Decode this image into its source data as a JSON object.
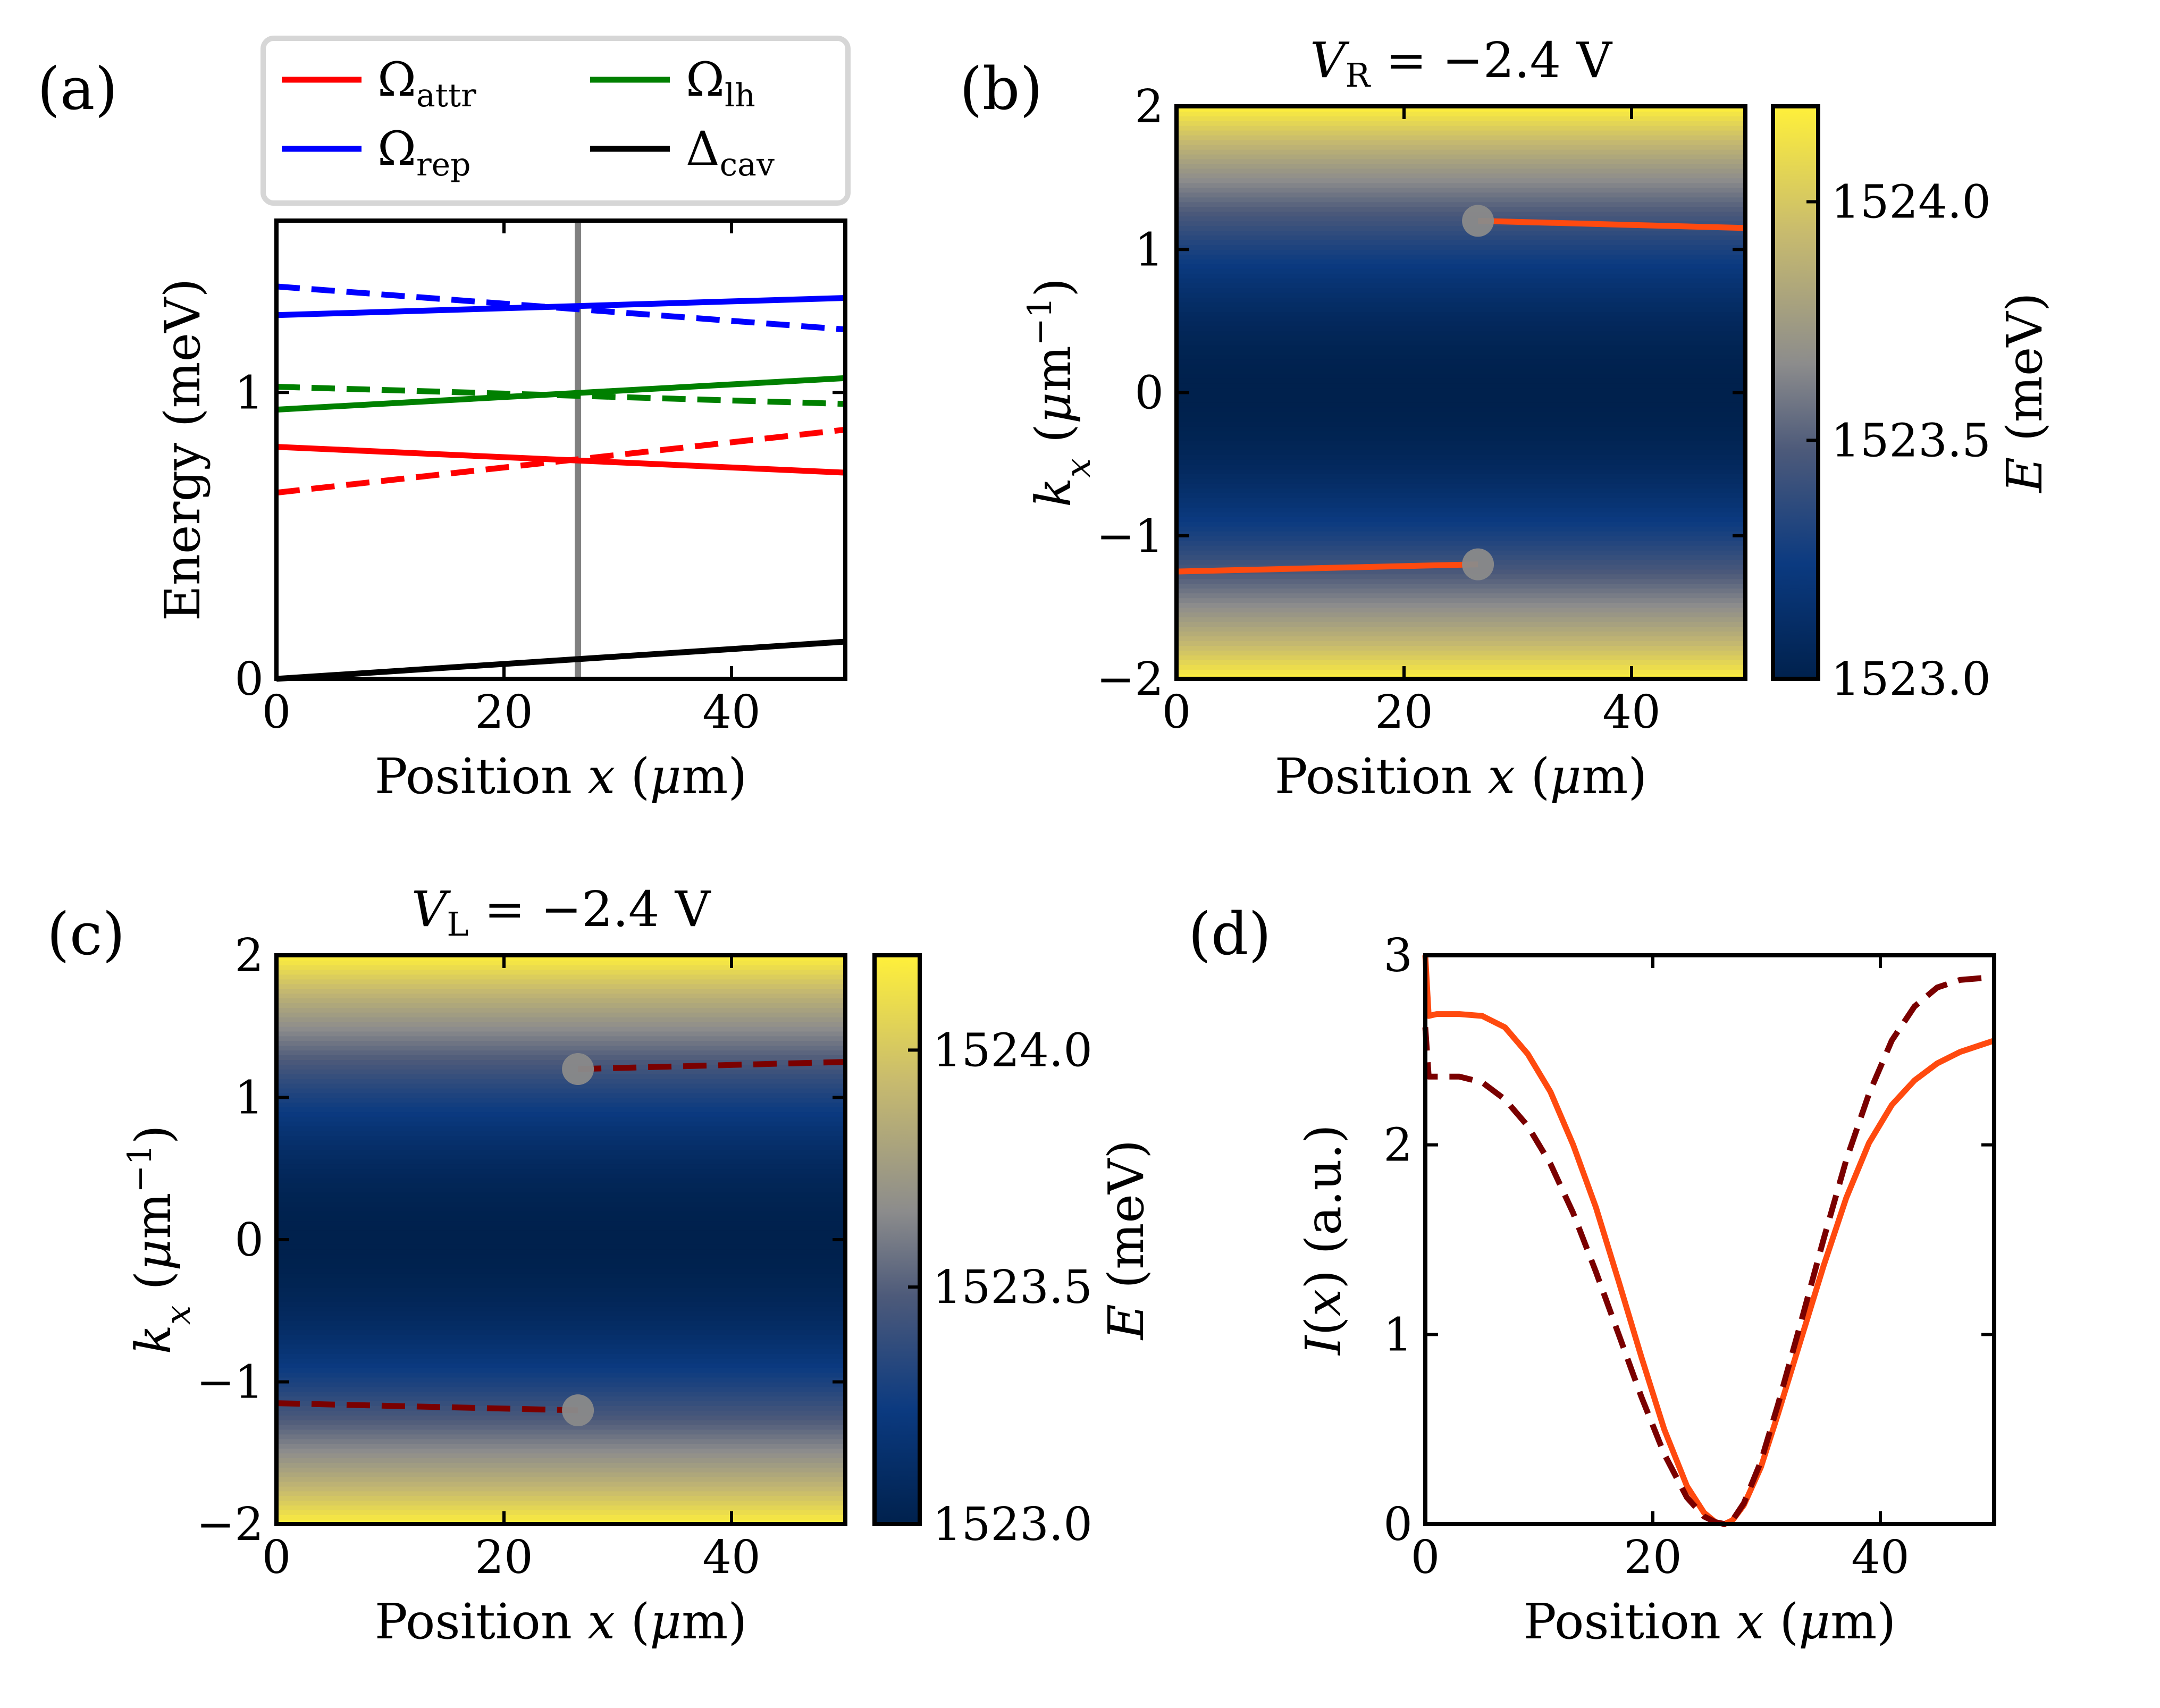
{
  "figure": {
    "panel_labels": [
      "(a)",
      "(b)",
      "(c)",
      "(d)"
    ]
  },
  "colors": {
    "attr": "#ff0000",
    "rep": "#0000ff",
    "lh": "#008000",
    "cav": "#000000",
    "orange": "#ff4a0f",
    "darkred": "#7a0000",
    "marker": "#8a8a8a",
    "cmap": [
      "#00214d",
      "#0b3a80",
      "#4d5a7a",
      "#8c8c8c",
      "#c8bb6e",
      "#fff03a"
    ]
  },
  "chart_data": [
    {
      "type": "line",
      "panel": "(a)",
      "xlabel": "Position x (μm)",
      "ylabel": "Energy (meV)",
      "xlim": [
        0,
        50
      ],
      "ylim": [
        0,
        1.6
      ],
      "xticks": [
        0,
        20,
        40
      ],
      "yticks": [
        0,
        1
      ],
      "xtick_labels": [
        "0",
        "20",
        "40"
      ],
      "ytick_labels": [
        "0",
        "1"
      ],
      "vline_x": 26.5,
      "legend": {
        "placement": "above",
        "entries": [
          {
            "key": "attr",
            "sym": "Ω",
            "sub": "attr"
          },
          {
            "key": "lh",
            "sym": "Ω",
            "sub": "lh"
          },
          {
            "key": "rep",
            "sym": "Ω",
            "sub": "rep"
          },
          {
            "key": "cav",
            "sym": "Δ",
            "sub": "cav"
          }
        ]
      },
      "series": [
        {
          "name": "Omega_rep",
          "color_key": "rep",
          "style": "solid",
          "x": [
            0,
            50
          ],
          "y": [
            1.27,
            1.33
          ]
        },
        {
          "name": "Omega_rep (dashed)",
          "color_key": "rep",
          "style": "dashed",
          "x": [
            0,
            50
          ],
          "y": [
            1.37,
            1.22
          ]
        },
        {
          "name": "Omega_lh",
          "color_key": "lh",
          "style": "solid",
          "x": [
            0,
            50
          ],
          "y": [
            0.94,
            1.05
          ]
        },
        {
          "name": "Omega_lh (dashed)",
          "color_key": "lh",
          "style": "dashed",
          "x": [
            0,
            50
          ],
          "y": [
            1.02,
            0.96
          ]
        },
        {
          "name": "Omega_attr",
          "color_key": "attr",
          "style": "solid",
          "x": [
            0,
            50
          ],
          "y": [
            0.81,
            0.72
          ]
        },
        {
          "name": "Omega_attr (dashed)",
          "color_key": "attr",
          "style": "dashed",
          "x": [
            0,
            50
          ],
          "y": [
            0.65,
            0.87
          ]
        },
        {
          "name": "Delta_cav",
          "color_key": "cav",
          "style": "solid",
          "x": [
            0,
            50
          ],
          "y": [
            0.0,
            0.13
          ]
        }
      ]
    },
    {
      "type": "heatmap",
      "panel": "(b)",
      "title": "V_R = −2.4 V",
      "title_var": "V",
      "title_sub": "R",
      "title_rest": " = −2.4 V",
      "xlabel": "Position x (μm)",
      "ylabel": "k_x (μm⁻¹)",
      "xlim": [
        0,
        50
      ],
      "ylim": [
        -2,
        2
      ],
      "xticks": [
        0,
        20,
        40
      ],
      "yticks": [
        -2,
        -1,
        0,
        1,
        2
      ],
      "xtick_labels": [
        "0",
        "20",
        "40"
      ],
      "ytick_labels": [
        "−2",
        "−1",
        "0",
        "1",
        "2"
      ],
      "energy_profile": "E(k_x) = 1523.0 + 1.2 (k_x/2)^2",
      "colorbar": {
        "label": "E (meV)",
        "range": [
          1523.0,
          1524.2
        ],
        "ticks": [
          1523.0,
          1523.5,
          1524.0
        ],
        "tick_labels": [
          "1523.0",
          "1523.5",
          "1524.0"
        ]
      },
      "markers": [
        {
          "x": 26.5,
          "y": 1.2
        },
        {
          "x": 26.5,
          "y": -1.2
        }
      ],
      "series": [
        {
          "name": "upper",
          "color_key": "orange",
          "style": "solid",
          "x": [
            26.5,
            50
          ],
          "y": [
            1.2,
            1.15
          ]
        },
        {
          "name": "lower",
          "color_key": "orange",
          "style": "solid",
          "x": [
            0,
            26.5
          ],
          "y": [
            -1.25,
            -1.2
          ]
        }
      ]
    },
    {
      "type": "heatmap",
      "panel": "(c)",
      "title": "V_L = −2.4 V",
      "title_var": "V",
      "title_sub": "L",
      "title_rest": " = −2.4 V",
      "xlabel": "Position x (μm)",
      "ylabel": "k_x (μm⁻¹)",
      "xlim": [
        0,
        50
      ],
      "ylim": [
        -2,
        2
      ],
      "xticks": [
        0,
        20,
        40
      ],
      "yticks": [
        -2,
        -1,
        0,
        1,
        2
      ],
      "xtick_labels": [
        "0",
        "20",
        "40"
      ],
      "ytick_labels": [
        "−2",
        "−1",
        "0",
        "1",
        "2"
      ],
      "energy_profile": "E(k_x) = 1523.0 + 1.2 (k_x/2)^2",
      "colorbar": {
        "label": "E (meV)",
        "range": [
          1523.0,
          1524.2
        ],
        "ticks": [
          1523.0,
          1523.5,
          1524.0
        ],
        "tick_labels": [
          "1523.0",
          "1523.5",
          "1524.0"
        ]
      },
      "markers": [
        {
          "x": 26.5,
          "y": 1.2
        },
        {
          "x": 26.5,
          "y": -1.2
        }
      ],
      "series": [
        {
          "name": "upper",
          "color_key": "darkred",
          "style": "dashed",
          "x": [
            26.5,
            50
          ],
          "y": [
            1.2,
            1.25
          ]
        },
        {
          "name": "lower",
          "color_key": "darkred",
          "style": "dashed",
          "x": [
            0,
            26.5
          ],
          "y": [
            -1.15,
            -1.2
          ]
        }
      ]
    },
    {
      "type": "line",
      "panel": "(d)",
      "xlabel": "Position x (μm)",
      "ylabel": "I(x) (a.u.)",
      "xlim": [
        0,
        50
      ],
      "ylim": [
        0,
        3
      ],
      "xticks": [
        0,
        20,
        40
      ],
      "yticks": [
        0,
        1,
        2,
        3
      ],
      "xtick_labels": [
        "0",
        "20",
        "40"
      ],
      "ytick_labels": [
        "0",
        "1",
        "2",
        "3"
      ],
      "series": [
        {
          "name": "orange",
          "color_key": "orange",
          "style": "solid",
          "x": [
            0,
            0.3,
            1,
            3,
            5,
            7,
            9,
            11,
            13,
            15,
            17,
            19,
            21,
            23,
            24.5,
            25.5,
            26.3,
            27,
            28,
            29.5,
            31,
            33,
            35,
            37,
            39,
            41,
            43,
            45,
            47,
            49,
            50
          ],
          "y": [
            3.0,
            2.68,
            2.69,
            2.69,
            2.68,
            2.62,
            2.48,
            2.28,
            2.0,
            1.67,
            1.28,
            0.88,
            0.5,
            0.2,
            0.06,
            0.01,
            0.0,
            0.02,
            0.1,
            0.3,
            0.58,
            0.97,
            1.36,
            1.72,
            2.01,
            2.21,
            2.34,
            2.43,
            2.49,
            2.53,
            2.55
          ]
        },
        {
          "name": "darkred",
          "color_key": "darkred",
          "style": "dashed",
          "x": [
            0,
            0.3,
            1,
            3,
            5,
            7,
            9,
            11,
            13,
            15,
            17,
            19,
            21,
            23,
            24.5,
            25.5,
            26.3,
            27,
            28,
            29.5,
            31,
            33,
            35,
            37,
            39,
            41,
            43,
            45,
            47,
            49,
            50
          ],
          "y": [
            2.62,
            2.36,
            2.36,
            2.36,
            2.33,
            2.24,
            2.1,
            1.9,
            1.64,
            1.33,
            1.0,
            0.67,
            0.37,
            0.14,
            0.04,
            0.01,
            0.0,
            0.02,
            0.11,
            0.33,
            0.63,
            1.06,
            1.5,
            1.92,
            2.27,
            2.55,
            2.73,
            2.83,
            2.87,
            2.88,
            2.88
          ]
        }
      ]
    }
  ]
}
